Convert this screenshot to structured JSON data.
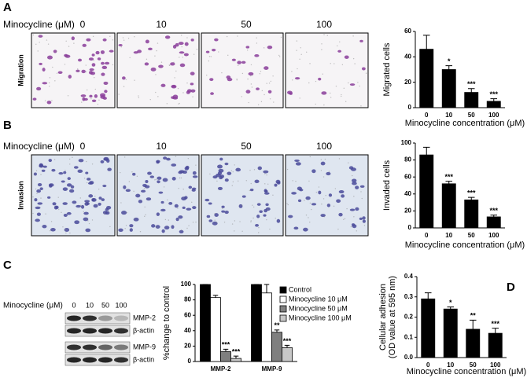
{
  "panel_labels": [
    "A",
    "B",
    "C",
    "D"
  ],
  "migration": {
    "treatment_label": "Minocycline (μM)",
    "doses": [
      "0",
      "10",
      "50",
      "100"
    ],
    "row_label": "Migration"
  },
  "invasion": {
    "treatment_label": "Minocycline (μM)",
    "doses": [
      "0",
      "10",
      "50",
      "100"
    ],
    "row_label": "Invasion"
  },
  "blot": {
    "treatment_label": "Minocycline (μM)",
    "doses": [
      "0",
      "10",
      "50",
      "100"
    ],
    "bands": [
      "MMP-2",
      "β-actin",
      "MMP-9",
      "β-actin"
    ]
  },
  "chart_data": [
    {
      "type": "bar",
      "categories": [
        "0",
        "10",
        "50",
        "100"
      ],
      "values": [
        46,
        30,
        12,
        5
      ],
      "errors": [
        11,
        3,
        3,
        2
      ],
      "significance": [
        null,
        "*",
        "***",
        "***"
      ],
      "color": "#000000",
      "ylim": [
        0,
        60
      ],
      "yticks": [
        0,
        20,
        40,
        60
      ],
      "ylabel": [
        "Migrated cells"
      ],
      "xlabel": "Minocycline concentration (μM)"
    },
    {
      "type": "bar",
      "categories": [
        "0",
        "10",
        "50",
        "100"
      ],
      "values": [
        86,
        52,
        33,
        13
      ],
      "errors": [
        9,
        3,
        3,
        2
      ],
      "significance": [
        null,
        "***",
        "***",
        "***"
      ],
      "color": "#000000",
      "ylim": [
        0,
        100
      ],
      "yticks": [
        0,
        20,
        40,
        60,
        80,
        100
      ],
      "ylabel": [
        "Invaded cells"
      ],
      "xlabel": "Minocycline concentration (μM)"
    },
    {
      "type": "bar",
      "categories": [
        "MMP-2",
        "MMP-9"
      ],
      "series": [
        {
          "name": "Control",
          "color": "#000000",
          "values": [
            100,
            100
          ],
          "errors": [
            0,
            0
          ],
          "significance": [
            null,
            null
          ]
        },
        {
          "name": "Minocycline 10 μM",
          "color": "#ffffff",
          "values": [
            83,
            89
          ],
          "errors": [
            3,
            11
          ],
          "significance": [
            null,
            null
          ]
        },
        {
          "name": "Minocycline 50 μM",
          "color": "#7f7f7f",
          "values": [
            13,
            38
          ],
          "errors": [
            3,
            3
          ],
          "significance": [
            "***",
            "**"
          ]
        },
        {
          "name": "Minocycline 100 μM",
          "color": "#c8c8c8",
          "values": [
            4,
            18
          ],
          "errors": [
            3,
            3
          ],
          "significance": [
            "***",
            "***"
          ]
        }
      ],
      "ylim": [
        0,
        100
      ],
      "yticks": [
        0,
        20,
        40,
        60,
        80,
        100
      ],
      "ylabel": [
        "%change to control"
      ],
      "legend": "upper right"
    },
    {
      "type": "bar",
      "categories": [
        "0",
        "10",
        "50",
        "100"
      ],
      "values": [
        0.29,
        0.24,
        0.14,
        0.12
      ],
      "errors": [
        0.03,
        0.01,
        0.045,
        0.025
      ],
      "significance": [
        null,
        "*",
        "**",
        "***"
      ],
      "color": "#000000",
      "ylim": [
        0,
        0.4
      ],
      "yticks": [
        {
          "value": 0,
          "label": "0.0"
        },
        0.1,
        0.2,
        0.3,
        0.4
      ],
      "ylabel": [
        "Cellular adhesion",
        "(OD value at 595 nm)"
      ],
      "xlabel": "Minocycline concentration (μM)"
    }
  ]
}
